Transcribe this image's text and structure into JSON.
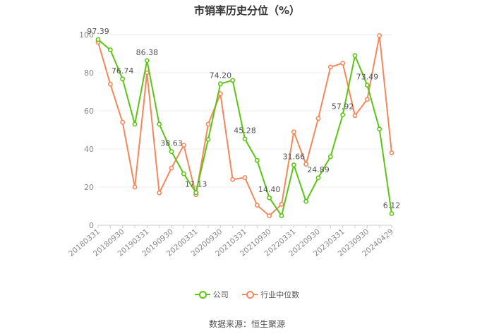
{
  "chart_data": {
    "type": "line",
    "title": "市销率历史分位（%）",
    "source": "数据来源：恒生聚源",
    "ylim": [
      0,
      100
    ],
    "yticks": [
      0,
      20,
      40,
      60,
      80,
      100
    ],
    "tick_labels": [
      "20180331",
      "20180930",
      "20190331",
      "20190930",
      "20200331",
      "20200930",
      "20210331",
      "20210930",
      "20220331",
      "20220930",
      "20230331",
      "20230930",
      "20240429"
    ],
    "categories": [
      "20180331",
      "20180630",
      "20180930",
      "20181231",
      "20190331",
      "20190630",
      "20190930",
      "20191231",
      "20200331",
      "20200630",
      "20200930",
      "20201231",
      "20210331",
      "20210630",
      "20210930",
      "20211231",
      "20220331",
      "20220630",
      "20220930",
      "20221231",
      "20230331",
      "20230630",
      "20230930",
      "20231231",
      "20240429"
    ],
    "series": [
      {
        "name": "公司",
        "color": "#5cc514",
        "values": [
          97.39,
          92,
          76.74,
          53,
          86.38,
          53,
          38.63,
          27,
          17.13,
          45,
          74.2,
          76,
          45.28,
          34,
          14.4,
          5,
          31.66,
          12.5,
          24.89,
          36,
          57.92,
          89,
          73.49,
          50.5,
          6.12
        ],
        "labels": [
          "97.39",
          "",
          "76.74",
          "",
          "86.38",
          "",
          "38.63",
          "",
          "17.13",
          "",
          "74.20",
          "",
          "45.28",
          "",
          "14.40",
          "",
          "31.66",
          "",
          "24.89",
          "",
          "57.92",
          "",
          "73.49",
          "",
          "6.12"
        ]
      },
      {
        "name": "行业中位数",
        "color": "#f5875c",
        "values": [
          96,
          74,
          54,
          20,
          80,
          17,
          30,
          42,
          16,
          53,
          69,
          24,
          25,
          10.5,
          5,
          11,
          49,
          32,
          56,
          83,
          85,
          57.5,
          66,
          99.5,
          38
        ]
      }
    ]
  }
}
